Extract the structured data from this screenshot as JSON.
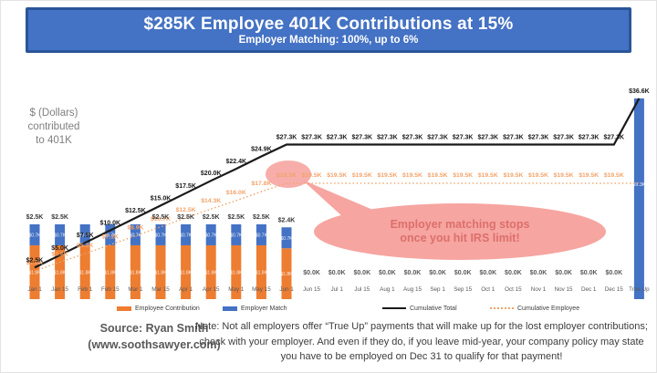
{
  "header": {
    "title": "$285K Employee 401K Contributions at 15%",
    "subtitle": "Employer Matching: 100%, up to 6%"
  },
  "y_axis_label": "$ (Dollars)\ncontributed\nto 401K",
  "callout": {
    "line1": "Employer matching stops",
    "line2": "once you hit IRS limit!"
  },
  "legend": {
    "employee": "Employee Contribution",
    "employer": "Employer Match",
    "cumulative_total": "Cumulative Total",
    "cumulative_employee": "Cumulative Employee"
  },
  "source": {
    "line1": "Source: Ryan Smith",
    "line2": "(www.soothsawyer.com)"
  },
  "note": "Note: Not all employers offer “True Up” payments that will make up for the lost employer contributions; check with your employer.  And even if they do, if you leave mid-year, your company policy may state you have to be employed on Dec 31 to qualify for that payment!",
  "colors": {
    "banner": "#4472C4",
    "banner_border": "#2A5699",
    "employee_bar": "#ED7D31",
    "employer_bar": "#4472C4",
    "cumulative_total_line": "#1a1a1a",
    "cumulative_employee_line": "#F2A36A",
    "callout_fill": "#F6A5A1",
    "callout_text": "#DD6F6B",
    "zero_label": "#595959",
    "axis_label": "#595959"
  },
  "chart_data": {
    "type": "combo: stacked bar + 2 cumulative lines",
    "unit": "$K contributed to 401K",
    "ylim": [
      0,
      40
    ],
    "grid": false,
    "legend_position": "bottom",
    "categories": [
      "Jan 1",
      "Jan 15",
      "Feb 1",
      "Feb 15",
      "Mar 1",
      "Mar 15",
      "Apr 1",
      "Apr 15",
      "May 1",
      "May 15",
      "Jun 1",
      "Jun 15",
      "Jul 1",
      "Jul 15",
      "Aug 1",
      "Aug 15",
      "Sep 1",
      "Sep 15",
      "Oct 1",
      "Oct 15",
      "Nov 1",
      "Nov 15",
      "Dec 1",
      "Dec 15",
      "True Up"
    ],
    "bar_series": [
      {
        "name": "Employee Contribution",
        "color": "#ED7D31",
        "values": [
          1.8,
          1.8,
          1.8,
          1.8,
          1.8,
          1.8,
          1.8,
          1.8,
          1.8,
          1.8,
          1.7,
          0,
          0,
          0,
          0,
          0,
          0,
          0,
          0,
          0,
          0,
          0,
          0,
          0,
          0
        ],
        "segment_label": "$1.8K"
      },
      {
        "name": "Employer Match",
        "color": "#4472C4",
        "values": [
          0.7,
          0.7,
          0.7,
          0.7,
          0.7,
          0.7,
          0.7,
          0.7,
          0.7,
          0.7,
          0.7,
          0,
          0,
          0,
          0,
          0,
          0,
          0,
          0,
          0,
          0,
          0,
          0,
          0,
          9.3
        ],
        "segment_label": "$0.7K",
        "true_up_label": "$9.3K"
      }
    ],
    "bar_total_labels": [
      "$2.5K",
      "$2.5K",
      "",
      "",
      "",
      "$2.5K",
      "$2.5K",
      "$2.5K",
      "$2.5K",
      "$2.5K",
      "$2.4K",
      "$0.0K",
      "$0.0K",
      "$0.0K",
      "$0.0K",
      "$0.0K",
      "$0.0K",
      "$0.0K",
      "$0.0K",
      "$0.0K",
      "$0.0K",
      "$0.0K",
      "$0.0K",
      "$0.0K",
      ""
    ],
    "line_series": [
      {
        "name": "Cumulative Total",
        "style": "solid",
        "color": "#1a1a1a",
        "values": [
          2.5,
          5.0,
          7.5,
          10.0,
          12.5,
          15.0,
          17.5,
          20.0,
          22.4,
          24.9,
          27.3,
          27.3,
          27.3,
          27.3,
          27.3,
          27.3,
          27.3,
          27.3,
          27.3,
          27.3,
          27.3,
          27.3,
          27.3,
          27.3,
          36.6
        ],
        "labels": [
          "$2.5K",
          "$5.0K",
          "$7.5K",
          "$10.0K",
          "$12.5K",
          "$15.0K",
          "$17.5K",
          "$20.0K",
          "$22.4K",
          "$24.9K",
          "$27.3K",
          "$27.3K",
          "$27.3K",
          "$27.3K",
          "$27.3K",
          "$27.3K",
          "$27.3K",
          "$27.3K",
          "$27.3K",
          "$27.3K",
          "$27.3K",
          "$27.3K",
          "$27.3K",
          "$27.3K",
          "$36.6K"
        ]
      },
      {
        "name": "Cumulative Employee",
        "style": "dotted",
        "color": "#F2A36A",
        "values": [
          1.8,
          3.6,
          5.3,
          7.1,
          8.9,
          10.7,
          12.5,
          14.3,
          16.0,
          17.8,
          19.5,
          19.5,
          19.5,
          19.5,
          19.5,
          19.5,
          19.5,
          19.5,
          19.5,
          19.5,
          19.5,
          19.5,
          19.5,
          19.5,
          19.5
        ],
        "labels": [
          "$1.8K",
          "$3.6K",
          "$5.3K",
          "$7.1K",
          "$8.9K",
          "$10.7K",
          "$12.5K",
          "$14.3K",
          "$16.0K",
          "$17.8K",
          "$19.5K",
          "$19.5K",
          "$19.5K",
          "$19.5K",
          "$19.5K",
          "$19.5K",
          "$19.5K",
          "$19.5K",
          "$19.5K",
          "$19.5K",
          "$19.5K",
          "$19.5K",
          "$19.5K",
          "$19.5K",
          ""
        ]
      }
    ],
    "annotations": {
      "irs_limit_highlight_at": "Jun 1",
      "callout_text": "Employer matching stops once you hit IRS limit!"
    }
  }
}
